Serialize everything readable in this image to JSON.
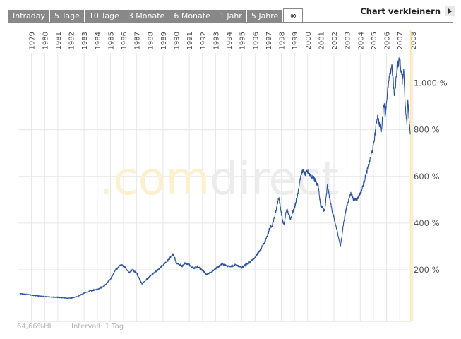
{
  "tabs": [
    {
      "label": "Intraday",
      "active": false
    },
    {
      "label": "5 Tage",
      "active": false
    },
    {
      "label": "10 Tage",
      "active": false
    },
    {
      "label": "3 Monate",
      "active": false
    },
    {
      "label": "6 Monate",
      "active": false
    },
    {
      "label": "1 Jahr",
      "active": false
    },
    {
      "label": "5 Jahre",
      "active": false
    },
    {
      "label": "∞",
      "active": true
    }
  ],
  "header": {
    "shrink_label": "Chart verkleinern"
  },
  "footer": {
    "hl_label": "64,66%HL",
    "interval_label": "Intervall: 1 Tag"
  },
  "watermark": {
    "part1": ".com",
    "part2": "direct"
  },
  "colors": {
    "line": "#2a52a0",
    "grid": "#e6e6e6",
    "highlight": "#ffe9a8",
    "tab": "#888888",
    "watermark1": "#fdf0cf",
    "watermark2": "#ececec"
  },
  "chart_data": {
    "type": "line",
    "x_unit": "year",
    "xlim": [
      1978.5,
      2008.35
    ],
    "ylim": [
      70,
      1180
    ],
    "y_ticks": [
      {
        "value": 200,
        "label": "200 %"
      },
      {
        "value": 400,
        "label": "400 %"
      },
      {
        "value": 600,
        "label": "600 %"
      },
      {
        "value": 800,
        "label": "800 %"
      },
      {
        "value": 1000,
        "label": "1.000 %"
      }
    ],
    "x_ticks": [
      "1979",
      "1980",
      "1981",
      "1982",
      "1983",
      "1984",
      "1985",
      "1986",
      "1987",
      "1988",
      "1989",
      "1990",
      "1991",
      "1992",
      "1993",
      "1994",
      "1995",
      "1996",
      "1997",
      "1998",
      "1999",
      "2000",
      "2001",
      "2002",
      "2003",
      "2004",
      "2005",
      "2006",
      "2007",
      "2008"
    ],
    "grid": true,
    "series": [
      {
        "x": [
          1978.6,
          1979.5,
          1980.5,
          1981.5,
          1982.3,
          1982.6,
          1983.0,
          1983.5,
          1984.0,
          1984.5,
          1985.0,
          1985.5,
          1985.9,
          1986.3,
          1986.6,
          1986.9,
          1987.2,
          1987.5,
          1987.8,
          1987.9,
          1988.3,
          1988.8,
          1989.3,
          1989.7,
          1990.0,
          1990.3,
          1990.5,
          1990.7,
          1990.9,
          1991.2,
          1991.5,
          1991.8,
          1992.2,
          1992.5,
          1992.8,
          1992.9,
          1993.3,
          1993.7,
          1994.0,
          1994.3,
          1994.7,
          1995.0,
          1995.5,
          1996.0,
          1996.5,
          1996.9,
          1997.3,
          1997.6,
          1997.8,
          1998.0,
          1998.3,
          1998.6,
          1998.7,
          1998.9,
          1999.2,
          1999.5,
          1999.7,
          1999.9,
          2000.1,
          2000.3,
          2000.5,
          2000.8,
          2001.0,
          2001.3,
          2001.5,
          2001.7,
          2001.8,
          2002.0,
          2002.3,
          2002.6,
          2002.8,
          2003.0,
          2003.2,
          2003.5,
          2003.8,
          2004.0,
          2004.3,
          2004.6,
          2004.9,
          2005.2,
          2005.5,
          2005.8,
          2006.1,
          2006.3,
          2006.4,
          2006.6,
          2006.9,
          2007.1,
          2007.3,
          2007.5,
          2007.7,
          2007.8,
          2007.95,
          2008.05,
          2008.12,
          2008.2,
          2008.3
        ],
        "y": [
          98,
          92,
          85,
          82,
          78,
          80,
          86,
          100,
          110,
          116,
          130,
          160,
          200,
          222,
          212,
          190,
          200,
          185,
          150,
          140,
          162,
          185,
          210,
          230,
          248,
          268,
          230,
          225,
          215,
          228,
          222,
          208,
          212,
          198,
          180,
          182,
          197,
          212,
          225,
          218,
          213,
          222,
          210,
          230,
          252,
          285,
          325,
          375,
          392,
          430,
          512,
          410,
          390,
          460,
          420,
          470,
          510,
          582,
          625,
          610,
          620,
          600,
          590,
          560,
          470,
          460,
          450,
          560,
          470,
          400,
          350,
          300,
          390,
          480,
          530,
          500,
          505,
          540,
          600,
          660,
          730,
          860,
          790,
          920,
          860,
          980,
          1080,
          940,
          1070,
          1100,
          1010,
          1060,
          880,
          820,
          940,
          860,
          780
        ]
      }
    ]
  }
}
